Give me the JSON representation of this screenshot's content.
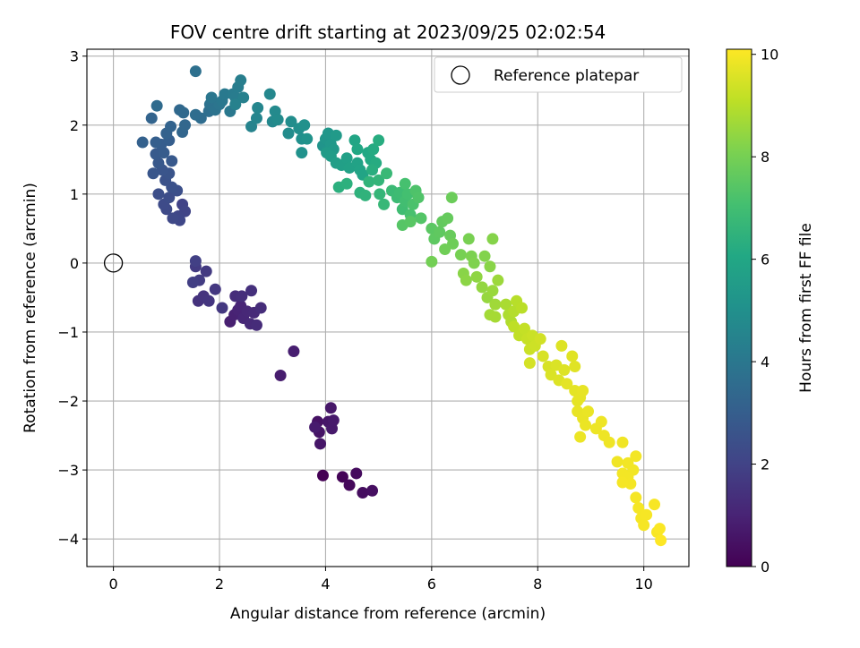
{
  "chart_data": {
    "type": "scatter",
    "title": "FOV centre drift starting at 2023/09/25 02:02:54",
    "xlabel": "Angular distance from reference (arcmin)",
    "ylabel": "Rotation from reference (arcmin)",
    "xlim": [
      -0.5,
      10.85
    ],
    "ylim": [
      -4.4,
      3.1
    ],
    "xticks": [
      0,
      2,
      4,
      6,
      8,
      10
    ],
    "yticks": [
      3,
      2,
      1,
      0,
      -1,
      -2,
      -3,
      -4
    ],
    "xtick_labels": [
      "0",
      "2",
      "4",
      "6",
      "8",
      "10"
    ],
    "ytick_labels": [
      "3",
      "2",
      "1",
      "0",
      "−1",
      "−2",
      "−3",
      "−4"
    ],
    "grid": true,
    "legend": {
      "position": "top-right",
      "label": "Reference platepar"
    },
    "reference_point": {
      "x": 0,
      "y": 0
    },
    "colorbar": {
      "label": "Hours from first FF file",
      "min": 0,
      "max": 10.1,
      "ticks": [
        0,
        2,
        4,
        6,
        8,
        10
      ],
      "tick_labels": [
        "0",
        "2",
        "4",
        "6",
        "8",
        "10"
      ],
      "colormap": "viridis"
    },
    "points": [
      {
        "x": 3.95,
        "y": -3.08,
        "t": 0.0
      },
      {
        "x": 4.32,
        "y": -3.1,
        "t": 0.1
      },
      {
        "x": 4.45,
        "y": -3.22,
        "t": 0.2
      },
      {
        "x": 4.58,
        "y": -3.05,
        "t": 0.3
      },
      {
        "x": 4.7,
        "y": -3.33,
        "t": 0.35
      },
      {
        "x": 4.88,
        "y": -3.3,
        "t": 0.4
      },
      {
        "x": 3.85,
        "y": -2.3,
        "t": 0.5
      },
      {
        "x": 3.88,
        "y": -2.45,
        "t": 0.55
      },
      {
        "x": 3.9,
        "y": -2.62,
        "t": 0.6
      },
      {
        "x": 4.05,
        "y": -2.3,
        "t": 0.6
      },
      {
        "x": 4.1,
        "y": -2.1,
        "t": 0.65
      },
      {
        "x": 4.12,
        "y": -2.4,
        "t": 0.7
      },
      {
        "x": 4.15,
        "y": -2.28,
        "t": 0.7
      },
      {
        "x": 3.8,
        "y": -2.38,
        "t": 0.75
      },
      {
        "x": 3.15,
        "y": -1.63,
        "t": 0.8
      },
      {
        "x": 3.4,
        "y": -1.28,
        "t": 0.85
      },
      {
        "x": 2.2,
        "y": -0.85,
        "t": 0.9
      },
      {
        "x": 2.28,
        "y": -0.75,
        "t": 0.95
      },
      {
        "x": 2.35,
        "y": -0.68,
        "t": 1.0
      },
      {
        "x": 2.4,
        "y": -0.62,
        "t": 1.05
      },
      {
        "x": 2.45,
        "y": -0.8,
        "t": 1.1
      },
      {
        "x": 2.52,
        "y": -0.7,
        "t": 1.15
      },
      {
        "x": 2.58,
        "y": -0.88,
        "t": 1.2
      },
      {
        "x": 2.65,
        "y": -0.72,
        "t": 1.2
      },
      {
        "x": 2.7,
        "y": -0.9,
        "t": 1.25
      },
      {
        "x": 2.78,
        "y": -0.65,
        "t": 1.3
      },
      {
        "x": 2.3,
        "y": -0.48,
        "t": 1.3
      },
      {
        "x": 2.42,
        "y": -0.48,
        "t": 1.35
      },
      {
        "x": 2.6,
        "y": -0.4,
        "t": 1.4
      },
      {
        "x": 1.6,
        "y": -0.55,
        "t": 1.45
      },
      {
        "x": 1.7,
        "y": -0.48,
        "t": 1.5
      },
      {
        "x": 1.8,
        "y": -0.55,
        "t": 1.55
      },
      {
        "x": 1.92,
        "y": -0.38,
        "t": 1.6
      },
      {
        "x": 2.05,
        "y": -0.65,
        "t": 1.65
      },
      {
        "x": 1.75,
        "y": -0.12,
        "t": 1.7
      },
      {
        "x": 1.55,
        "y": -0.05,
        "t": 1.75
      },
      {
        "x": 1.62,
        "y": -0.25,
        "t": 1.8
      },
      {
        "x": 1.5,
        "y": -0.28,
        "t": 1.85
      },
      {
        "x": 1.55,
        "y": 0.03,
        "t": 1.9
      },
      {
        "x": 1.3,
        "y": 0.85,
        "t": 2.0
      },
      {
        "x": 1.35,
        "y": 0.75,
        "t": 2.05
      },
      {
        "x": 1.22,
        "y": 0.68,
        "t": 2.1
      },
      {
        "x": 1.25,
        "y": 0.62,
        "t": 2.15
      },
      {
        "x": 1.12,
        "y": 0.65,
        "t": 2.2
      },
      {
        "x": 1.0,
        "y": 0.78,
        "t": 2.25
      },
      {
        "x": 0.95,
        "y": 0.85,
        "t": 2.3
      },
      {
        "x": 1.05,
        "y": 0.95,
        "t": 2.35
      },
      {
        "x": 0.85,
        "y": 1.0,
        "t": 2.4
      },
      {
        "x": 1.2,
        "y": 1.05,
        "t": 2.45
      },
      {
        "x": 1.1,
        "y": 1.1,
        "t": 2.5
      },
      {
        "x": 0.98,
        "y": 1.2,
        "t": 2.55
      },
      {
        "x": 1.05,
        "y": 1.3,
        "t": 2.6
      },
      {
        "x": 0.92,
        "y": 1.35,
        "t": 2.65
      },
      {
        "x": 0.75,
        "y": 1.3,
        "t": 2.7
      },
      {
        "x": 0.85,
        "y": 1.45,
        "t": 2.75
      },
      {
        "x": 1.1,
        "y": 1.48,
        "t": 2.8
      },
      {
        "x": 0.8,
        "y": 1.58,
        "t": 2.85
      },
      {
        "x": 0.95,
        "y": 1.6,
        "t": 2.9
      },
      {
        "x": 0.9,
        "y": 1.72,
        "t": 2.95
      },
      {
        "x": 1.05,
        "y": 1.78,
        "t": 3.0
      },
      {
        "x": 0.8,
        "y": 1.75,
        "t": 3.05
      },
      {
        "x": 0.55,
        "y": 1.75,
        "t": 3.1
      },
      {
        "x": 1.0,
        "y": 1.88,
        "t": 3.15
      },
      {
        "x": 1.08,
        "y": 1.98,
        "t": 3.2
      },
      {
        "x": 0.72,
        "y": 2.1,
        "t": 3.25
      },
      {
        "x": 1.3,
        "y": 1.9,
        "t": 3.3
      },
      {
        "x": 1.35,
        "y": 2.0,
        "t": 3.35
      },
      {
        "x": 1.25,
        "y": 2.22,
        "t": 3.4
      },
      {
        "x": 1.32,
        "y": 2.18,
        "t": 3.45
      },
      {
        "x": 0.82,
        "y": 2.28,
        "t": 3.5
      },
      {
        "x": 1.65,
        "y": 2.1,
        "t": 3.55
      },
      {
        "x": 1.55,
        "y": 2.15,
        "t": 3.6
      },
      {
        "x": 1.8,
        "y": 2.2,
        "t": 3.65
      },
      {
        "x": 1.55,
        "y": 2.78,
        "t": 3.7
      },
      {
        "x": 1.82,
        "y": 2.3,
        "t": 3.8
      },
      {
        "x": 1.92,
        "y": 2.22,
        "t": 3.85
      },
      {
        "x": 2.0,
        "y": 2.3,
        "t": 3.9
      },
      {
        "x": 1.85,
        "y": 2.4,
        "t": 3.95
      },
      {
        "x": 2.05,
        "y": 2.35,
        "t": 4.0
      },
      {
        "x": 2.2,
        "y": 2.2,
        "t": 4.05
      },
      {
        "x": 2.1,
        "y": 2.45,
        "t": 4.1
      },
      {
        "x": 2.25,
        "y": 2.45,
        "t": 4.15
      },
      {
        "x": 2.3,
        "y": 2.4,
        "t": 4.2
      },
      {
        "x": 2.35,
        "y": 2.55,
        "t": 4.25
      },
      {
        "x": 2.4,
        "y": 2.65,
        "t": 4.3
      },
      {
        "x": 2.45,
        "y": 2.4,
        "t": 4.35
      },
      {
        "x": 2.3,
        "y": 2.3,
        "t": 4.4
      },
      {
        "x": 2.6,
        "y": 1.98,
        "t": 4.5
      },
      {
        "x": 2.7,
        "y": 2.1,
        "t": 4.55
      },
      {
        "x": 2.72,
        "y": 2.25,
        "t": 4.6
      },
      {
        "x": 2.95,
        "y": 2.45,
        "t": 4.65
      },
      {
        "x": 3.0,
        "y": 2.05,
        "t": 4.7
      },
      {
        "x": 3.05,
        "y": 2.2,
        "t": 4.75
      },
      {
        "x": 3.1,
        "y": 2.08,
        "t": 4.8
      },
      {
        "x": 3.3,
        "y": 1.88,
        "t": 4.85
      },
      {
        "x": 3.35,
        "y": 2.05,
        "t": 4.9
      },
      {
        "x": 3.5,
        "y": 1.95,
        "t": 4.95
      },
      {
        "x": 3.55,
        "y": 1.8,
        "t": 5.0
      },
      {
        "x": 3.6,
        "y": 2.0,
        "t": 5.05
      },
      {
        "x": 3.55,
        "y": 1.6,
        "t": 5.1
      },
      {
        "x": 3.65,
        "y": 1.8,
        "t": 5.15
      },
      {
        "x": 3.95,
        "y": 1.7,
        "t": 5.2
      },
      {
        "x": 4.0,
        "y": 1.8,
        "t": 5.25
      },
      {
        "x": 4.05,
        "y": 1.88,
        "t": 5.3
      },
      {
        "x": 4.1,
        "y": 1.72,
        "t": 5.35
      },
      {
        "x": 4.15,
        "y": 1.65,
        "t": 5.4
      },
      {
        "x": 4.2,
        "y": 1.85,
        "t": 5.45
      },
      {
        "x": 4.02,
        "y": 1.6,
        "t": 5.5
      },
      {
        "x": 4.1,
        "y": 1.55,
        "t": 5.55
      },
      {
        "x": 4.2,
        "y": 1.45,
        "t": 5.6
      },
      {
        "x": 4.3,
        "y": 1.42,
        "t": 5.65
      },
      {
        "x": 4.4,
        "y": 1.52,
        "t": 5.7
      },
      {
        "x": 4.45,
        "y": 1.38,
        "t": 5.75
      },
      {
        "x": 4.6,
        "y": 1.45,
        "t": 5.8
      },
      {
        "x": 4.65,
        "y": 1.35,
        "t": 5.85
      },
      {
        "x": 4.7,
        "y": 1.28,
        "t": 5.9
      },
      {
        "x": 4.55,
        "y": 1.78,
        "t": 5.95
      },
      {
        "x": 4.6,
        "y": 1.65,
        "t": 6.0
      },
      {
        "x": 4.8,
        "y": 1.6,
        "t": 6.05
      },
      {
        "x": 4.85,
        "y": 1.5,
        "t": 6.1
      },
      {
        "x": 4.9,
        "y": 1.65,
        "t": 6.15
      },
      {
        "x": 4.95,
        "y": 1.45,
        "t": 6.2
      },
      {
        "x": 5.0,
        "y": 1.78,
        "t": 6.25
      },
      {
        "x": 4.88,
        "y": 1.35,
        "t": 6.3
      },
      {
        "x": 4.25,
        "y": 1.1,
        "t": 6.35
      },
      {
        "x": 4.4,
        "y": 1.15,
        "t": 6.4
      },
      {
        "x": 4.65,
        "y": 1.02,
        "t": 6.45
      },
      {
        "x": 4.75,
        "y": 0.98,
        "t": 6.5
      },
      {
        "x": 4.82,
        "y": 1.18,
        "t": 6.55
      },
      {
        "x": 5.0,
        "y": 1.2,
        "t": 6.6
      },
      {
        "x": 5.02,
        "y": 1.0,
        "t": 6.65
      },
      {
        "x": 5.1,
        "y": 0.85,
        "t": 6.7
      },
      {
        "x": 5.15,
        "y": 1.3,
        "t": 6.75
      },
      {
        "x": 5.25,
        "y": 1.05,
        "t": 6.8
      },
      {
        "x": 5.35,
        "y": 0.95,
        "t": 6.85
      },
      {
        "x": 5.4,
        "y": 1.02,
        "t": 6.9
      },
      {
        "x": 5.45,
        "y": 0.78,
        "t": 6.95
      },
      {
        "x": 5.5,
        "y": 0.9,
        "t": 7.0
      },
      {
        "x": 5.55,
        "y": 1.0,
        "t": 7.05
      },
      {
        "x": 5.5,
        "y": 1.15,
        "t": 7.1
      },
      {
        "x": 5.6,
        "y": 0.7,
        "t": 7.15
      },
      {
        "x": 5.65,
        "y": 0.85,
        "t": 7.2
      },
      {
        "x": 5.7,
        "y": 1.05,
        "t": 7.25
      },
      {
        "x": 5.75,
        "y": 0.95,
        "t": 7.3
      },
      {
        "x": 5.8,
        "y": 0.65,
        "t": 7.35
      },
      {
        "x": 5.45,
        "y": 0.55,
        "t": 7.4
      },
      {
        "x": 5.6,
        "y": 0.6,
        "t": 7.45
      },
      {
        "x": 6.0,
        "y": 0.5,
        "t": 7.5
      },
      {
        "x": 6.05,
        "y": 0.35,
        "t": 7.55
      },
      {
        "x": 6.15,
        "y": 0.45,
        "t": 7.6
      },
      {
        "x": 6.2,
        "y": 0.6,
        "t": 7.65
      },
      {
        "x": 6.3,
        "y": 0.65,
        "t": 7.7
      },
      {
        "x": 6.35,
        "y": 0.4,
        "t": 7.75
      },
      {
        "x": 6.38,
        "y": 0.95,
        "t": 7.8
      },
      {
        "x": 6.4,
        "y": 0.28,
        "t": 7.85
      },
      {
        "x": 6.25,
        "y": 0.2,
        "t": 7.9
      },
      {
        "x": 6.0,
        "y": 0.02,
        "t": 7.95
      },
      {
        "x": 6.55,
        "y": 0.12,
        "t": 8.0
      },
      {
        "x": 6.7,
        "y": 0.35,
        "t": 8.05
      },
      {
        "x": 6.75,
        "y": 0.1,
        "t": 8.1
      },
      {
        "x": 6.8,
        "y": 0.0,
        "t": 8.15
      },
      {
        "x": 7.0,
        "y": 0.1,
        "t": 8.2
      },
      {
        "x": 7.15,
        "y": 0.35,
        "t": 8.25
      },
      {
        "x": 7.1,
        "y": -0.05,
        "t": 8.3
      },
      {
        "x": 6.6,
        "y": -0.15,
        "t": 8.3
      },
      {
        "x": 6.65,
        "y": -0.25,
        "t": 8.35
      },
      {
        "x": 6.85,
        "y": -0.2,
        "t": 8.4
      },
      {
        "x": 6.95,
        "y": -0.35,
        "t": 8.45
      },
      {
        "x": 7.05,
        "y": -0.5,
        "t": 8.5
      },
      {
        "x": 7.15,
        "y": -0.4,
        "t": 8.55
      },
      {
        "x": 7.25,
        "y": -0.25,
        "t": 8.6
      },
      {
        "x": 7.2,
        "y": -0.6,
        "t": 8.65
      },
      {
        "x": 7.1,
        "y": -0.75,
        "t": 8.7
      },
      {
        "x": 7.2,
        "y": -0.78,
        "t": 8.75
      },
      {
        "x": 7.4,
        "y": -0.6,
        "t": 8.8
      },
      {
        "x": 7.45,
        "y": -0.75,
        "t": 8.85
      },
      {
        "x": 7.5,
        "y": -0.85,
        "t": 8.9
      },
      {
        "x": 7.55,
        "y": -0.7,
        "t": 8.95
      },
      {
        "x": 7.6,
        "y": -0.55,
        "t": 9.0
      },
      {
        "x": 7.7,
        "y": -0.65,
        "t": 9.05
      },
      {
        "x": 7.55,
        "y": -0.92,
        "t": 9.1
      },
      {
        "x": 7.65,
        "y": -1.05,
        "t": 9.15
      },
      {
        "x": 7.75,
        "y": -0.95,
        "t": 9.2
      },
      {
        "x": 7.8,
        "y": -1.1,
        "t": 9.25
      },
      {
        "x": 7.85,
        "y": -1.25,
        "t": 9.3
      },
      {
        "x": 7.9,
        "y": -1.05,
        "t": 9.3
      },
      {
        "x": 7.95,
        "y": -1.2,
        "t": 9.35
      },
      {
        "x": 8.05,
        "y": -1.1,
        "t": 9.4
      },
      {
        "x": 7.85,
        "y": -1.45,
        "t": 9.45
      },
      {
        "x": 8.1,
        "y": -1.35,
        "t": 9.5
      },
      {
        "x": 8.2,
        "y": -1.5,
        "t": 9.5
      },
      {
        "x": 8.25,
        "y": -1.62,
        "t": 9.55
      },
      {
        "x": 8.35,
        "y": -1.48,
        "t": 9.55
      },
      {
        "x": 8.4,
        "y": -1.7,
        "t": 9.6
      },
      {
        "x": 8.5,
        "y": -1.55,
        "t": 9.6
      },
      {
        "x": 8.45,
        "y": -1.2,
        "t": 9.6
      },
      {
        "x": 8.65,
        "y": -1.35,
        "t": 9.65
      },
      {
        "x": 8.7,
        "y": -1.5,
        "t": 9.65
      },
      {
        "x": 8.55,
        "y": -1.75,
        "t": 9.7
      },
      {
        "x": 8.7,
        "y": -1.85,
        "t": 9.7
      },
      {
        "x": 8.75,
        "y": -2.0,
        "t": 9.72
      },
      {
        "x": 8.8,
        "y": -1.95,
        "t": 9.74
      },
      {
        "x": 8.85,
        "y": -1.85,
        "t": 9.75
      },
      {
        "x": 8.75,
        "y": -2.15,
        "t": 9.77
      },
      {
        "x": 8.85,
        "y": -2.25,
        "t": 9.78
      },
      {
        "x": 8.95,
        "y": -2.15,
        "t": 9.8
      },
      {
        "x": 8.9,
        "y": -2.35,
        "t": 9.82
      },
      {
        "x": 8.8,
        "y": -2.52,
        "t": 9.83
      },
      {
        "x": 9.1,
        "y": -2.4,
        "t": 9.85
      },
      {
        "x": 9.2,
        "y": -2.3,
        "t": 9.86
      },
      {
        "x": 9.25,
        "y": -2.5,
        "t": 9.87
      },
      {
        "x": 9.35,
        "y": -2.6,
        "t": 9.88
      },
      {
        "x": 9.5,
        "y": -2.88,
        "t": 9.9
      },
      {
        "x": 9.6,
        "y": -2.6,
        "t": 9.9
      },
      {
        "x": 9.7,
        "y": -2.9,
        "t": 9.92
      },
      {
        "x": 9.8,
        "y": -3.0,
        "t": 9.93
      },
      {
        "x": 9.85,
        "y": -2.8,
        "t": 9.94
      },
      {
        "x": 9.6,
        "y": -3.05,
        "t": 9.95
      },
      {
        "x": 9.7,
        "y": -3.1,
        "t": 9.95
      },
      {
        "x": 9.75,
        "y": -3.2,
        "t": 9.96
      },
      {
        "x": 9.85,
        "y": -3.4,
        "t": 9.97
      },
      {
        "x": 9.6,
        "y": -3.18,
        "t": 9.97
      },
      {
        "x": 9.9,
        "y": -3.55,
        "t": 9.98
      },
      {
        "x": 9.95,
        "y": -3.7,
        "t": 9.98
      },
      {
        "x": 10.05,
        "y": -3.65,
        "t": 9.99
      },
      {
        "x": 10.0,
        "y": -3.8,
        "t": 9.99
      },
      {
        "x": 10.2,
        "y": -3.5,
        "t": 10.0
      },
      {
        "x": 10.25,
        "y": -3.9,
        "t": 10.0
      },
      {
        "x": 10.3,
        "y": -3.85,
        "t": 10.05
      },
      {
        "x": 10.32,
        "y": -4.02,
        "t": 10.1
      }
    ]
  },
  "colors": {
    "grid": "#b0b0b0",
    "reference_marker": "#000000"
  }
}
